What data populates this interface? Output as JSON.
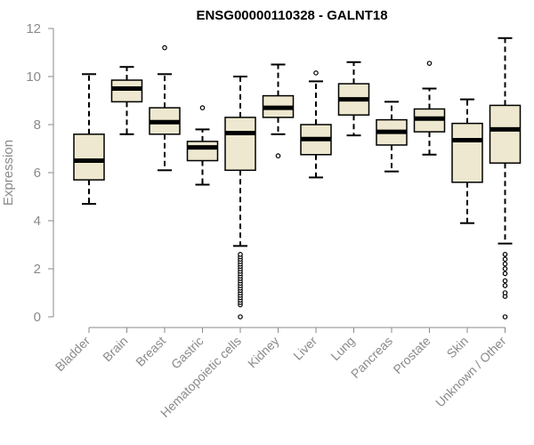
{
  "chart_data": {
    "type": "box",
    "title": "ENSG00000110328 - GALNT18",
    "xlabel": "",
    "ylabel": "Expression",
    "ylim": [
      0,
      12
    ],
    "yticks": [
      0,
      2,
      4,
      6,
      8,
      10,
      12
    ],
    "grid": false,
    "colors": {
      "box_fill": "#ede8cf",
      "box_stroke": "#000000",
      "axis": "#8a8a8a"
    },
    "categories": [
      "Bladder",
      "Brain",
      "Breast",
      "Gastric",
      "Hematopoietic cells",
      "Kidney",
      "Liver",
      "Lung",
      "Pancreas",
      "Prostate",
      "Skin",
      "Unknown / Other"
    ],
    "boxes": [
      {
        "name": "Bladder",
        "whisker_low": 4.7,
        "q1": 5.7,
        "median": 6.5,
        "q3": 7.6,
        "whisker_high": 10.1,
        "outliers": []
      },
      {
        "name": "Brain",
        "whisker_low": 7.6,
        "q1": 8.95,
        "median": 9.5,
        "q3": 9.85,
        "whisker_high": 10.4,
        "outliers": []
      },
      {
        "name": "Breast",
        "whisker_low": 6.1,
        "q1": 7.6,
        "median": 8.1,
        "q3": 8.7,
        "whisker_high": 10.1,
        "outliers": [
          11.2
        ]
      },
      {
        "name": "Gastric",
        "whisker_low": 5.5,
        "q1": 6.5,
        "median": 7.05,
        "q3": 7.3,
        "whisker_high": 7.8,
        "outliers": [
          8.7
        ]
      },
      {
        "name": "Hematopoietic cells",
        "whisker_low": 2.95,
        "q1": 6.1,
        "median": 7.65,
        "q3": 8.3,
        "whisker_high": 10.0,
        "outliers": [
          0,
          0.5,
          0.6,
          0.7,
          0.8,
          0.9,
          1.0,
          1.1,
          1.2,
          1.3,
          1.4,
          1.5,
          1.6,
          1.7,
          1.8,
          1.9,
          2.0,
          2.1,
          2.2,
          2.3,
          2.4,
          2.5,
          2.6
        ]
      },
      {
        "name": "Kidney",
        "whisker_low": 7.6,
        "q1": 8.3,
        "median": 8.7,
        "q3": 9.2,
        "whisker_high": 10.5,
        "outliers": [
          6.7
        ]
      },
      {
        "name": "Liver",
        "whisker_low": 5.8,
        "q1": 6.75,
        "median": 7.4,
        "q3": 8.0,
        "whisker_high": 9.8,
        "outliers": [
          10.15
        ]
      },
      {
        "name": "Lung",
        "whisker_low": 7.55,
        "q1": 8.4,
        "median": 9.05,
        "q3": 9.7,
        "whisker_high": 10.6,
        "outliers": []
      },
      {
        "name": "Pancreas",
        "whisker_low": 6.05,
        "q1": 7.15,
        "median": 7.7,
        "q3": 8.2,
        "whisker_high": 8.95,
        "outliers": []
      },
      {
        "name": "Prostate",
        "whisker_low": 6.75,
        "q1": 7.7,
        "median": 8.25,
        "q3": 8.65,
        "whisker_high": 9.5,
        "outliers": [
          10.55
        ]
      },
      {
        "name": "Skin",
        "whisker_low": 3.9,
        "q1": 5.6,
        "median": 7.35,
        "q3": 8.05,
        "whisker_high": 9.05,
        "outliers": []
      },
      {
        "name": "Unknown / Other",
        "whisker_low": 3.05,
        "q1": 6.4,
        "median": 7.8,
        "q3": 8.8,
        "whisker_high": 11.6,
        "outliers": [
          0,
          0.85,
          1.0,
          1.3,
          1.5,
          1.8,
          2.0,
          2.2,
          2.4,
          2.6
        ]
      }
    ]
  }
}
